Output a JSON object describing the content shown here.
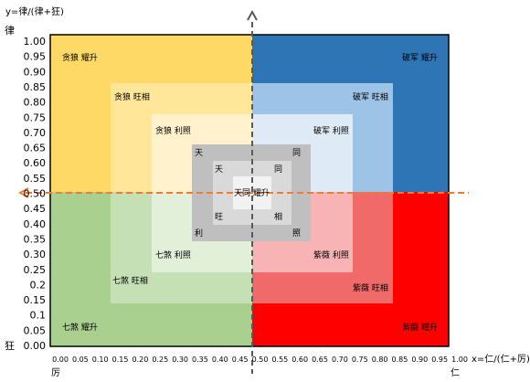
{
  "y_axis": {
    "title": "y=律/(律+狂)",
    "top_label": "律",
    "bottom_label": "狂",
    "ticks": [
      "1.00",
      "0.95",
      "0.90",
      "0.85",
      "0.80",
      "0.75",
      "0.70",
      "0.65",
      "0.60",
      "0.55",
      "0.50",
      "0.45",
      "0.40",
      "0.35",
      "0.30",
      "0.25",
      "0.2",
      "0.15",
      "0.1",
      "0.05",
      "0.00"
    ]
  },
  "x_axis": {
    "title": "x=仁/(仁+厉)",
    "left_label": "厉",
    "right_label": "仁",
    "ticks": [
      "0.00",
      "0.05",
      "0.10",
      "0.15",
      "0.20",
      "0.25",
      "0.30",
      "0.35",
      "0.40",
      "0.45",
      "0.50",
      "0.55",
      "0.60",
      "0.65",
      "0.70",
      "0.75",
      "0.80",
      "0.85",
      "0.90",
      "0.95",
      "1.00"
    ]
  },
  "quadrant_colors": {
    "top_left": [
      "#FFD966",
      "#FFE699",
      "#FFF2CC"
    ],
    "top_right": [
      "#2E75B6",
      "#9DC3E6",
      "#DEEBF7"
    ],
    "bottom_left": [
      "#A9D08E",
      "#C5E0B4",
      "#E2F0D9"
    ],
    "bottom_right": [
      "#FF0000",
      "#F06A6A",
      "#F8B4B4"
    ],
    "core": [
      "#BFBFBF",
      "#D9D9D9",
      "#F2F2F2"
    ]
  },
  "guide_color": "#ED7D31",
  "axis_color": "#595959",
  "labels": {
    "tl1": "贪狼 耀升",
    "tl2": "贪狼 旺相",
    "tl3": "贪狼 利照",
    "tr1": "破军 耀升",
    "tr2": "破军 旺相",
    "tr3": "破军 利照",
    "bl1": "七煞 耀升",
    "bl2": "七煞 旺相",
    "bl3": "七煞 利照",
    "br1": "紫薇 耀升",
    "br2": "紫薇 旺相",
    "br3": "紫薇 利照",
    "center": "天同 耀升",
    "g_tl_outer": "天",
    "g_tr_outer": "同",
    "g_bl_outer": "利",
    "g_br_outer": "照",
    "g_tl_inner": "天",
    "g_tr_inner": "同",
    "g_bl_inner": "旺",
    "g_br_inner": "相"
  }
}
